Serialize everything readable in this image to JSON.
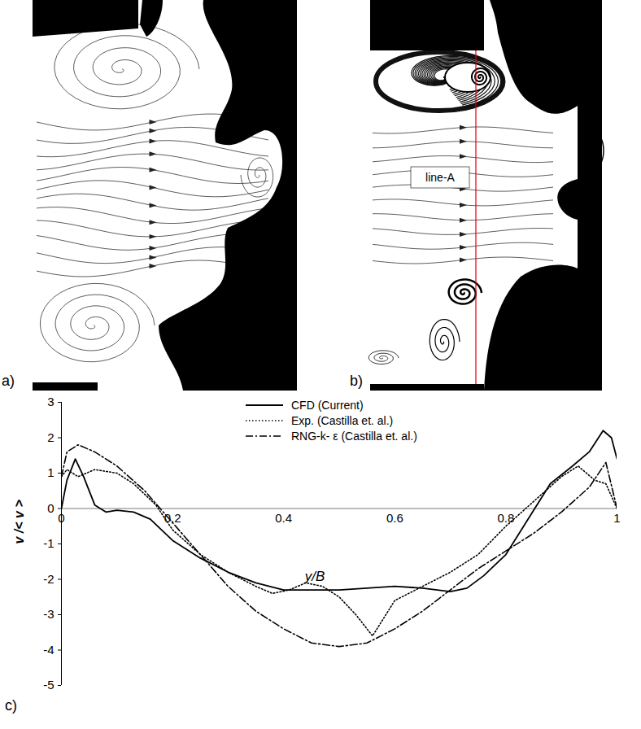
{
  "panels": [
    {
      "label": "a)"
    },
    {
      "label": "b)",
      "annotation": "line-A"
    }
  ],
  "chart_data": {
    "type": "line",
    "label": "c)",
    "x_label": "y/B",
    "y_label": "v /< v >",
    "xlim": [
      0,
      1
    ],
    "xticks": [
      0,
      0.2,
      0.4,
      0.6,
      0.8,
      1
    ],
    "ylim": [
      -5,
      3
    ],
    "yticks": [
      -5,
      -4,
      -3,
      -2,
      -1,
      0,
      1,
      2,
      3
    ],
    "grid": false,
    "legend": "top",
    "series": [
      {
        "name": "CFD (Current)",
        "color": "#000000",
        "line_style": "solid",
        "x": [
          0,
          0.01,
          0.025,
          0.04,
          0.06,
          0.08,
          0.1,
          0.13,
          0.16,
          0.2,
          0.25,
          0.3,
          0.35,
          0.4,
          0.45,
          0.5,
          0.55,
          0.6,
          0.65,
          0.7,
          0.73,
          0.76,
          0.8,
          0.84,
          0.88,
          0.92,
          0.95,
          0.975,
          0.99,
          1
        ],
        "values": [
          0,
          0.8,
          1.4,
          0.9,
          0.1,
          -0.1,
          -0.05,
          -0.1,
          -0.3,
          -0.9,
          -1.4,
          -1.8,
          -2.1,
          -2.3,
          -2.3,
          -2.3,
          -2.25,
          -2.2,
          -2.25,
          -2.35,
          -2.25,
          -1.9,
          -1.3,
          -0.3,
          0.7,
          1.2,
          1.6,
          2.2,
          2.0,
          1.4
        ]
      },
      {
        "name": "Exp. (Castilla et. al.)",
        "color": "#000000",
        "line_style": "dotted",
        "x": [
          0,
          0.01,
          0.03,
          0.06,
          0.1,
          0.13,
          0.17,
          0.2,
          0.25,
          0.3,
          0.35,
          0.38,
          0.41,
          0.44,
          0.47,
          0.5,
          0.53,
          0.56,
          0.58,
          0.6,
          0.65,
          0.7,
          0.75,
          0.8,
          0.85,
          0.9,
          0.93,
          0.96,
          0.98,
          1
        ],
        "values": [
          0.9,
          1.1,
          0.9,
          1.1,
          1.0,
          0.7,
          0.1,
          -0.6,
          -1.3,
          -1.8,
          -2.2,
          -2.4,
          -2.3,
          -2.1,
          -2.2,
          -2.5,
          -3.0,
          -3.6,
          -3.1,
          -2.6,
          -2.2,
          -1.8,
          -1.3,
          -0.5,
          0.2,
          0.9,
          1.2,
          0.8,
          0.7,
          0
        ]
      },
      {
        "name": "RNG-k- ε  (Castilla et. al.)",
        "color": "#000000",
        "line_style": "dashdot",
        "x": [
          0,
          0.01,
          0.03,
          0.06,
          0.1,
          0.15,
          0.2,
          0.25,
          0.3,
          0.35,
          0.4,
          0.45,
          0.5,
          0.55,
          0.6,
          0.65,
          0.7,
          0.75,
          0.8,
          0.85,
          0.9,
          0.95,
          0.98,
          1
        ],
        "values": [
          0.9,
          1.6,
          1.8,
          1.6,
          1.2,
          0.5,
          -0.4,
          -1.3,
          -2.2,
          -2.9,
          -3.4,
          -3.8,
          -3.9,
          -3.8,
          -3.4,
          -2.9,
          -2.3,
          -1.7,
          -1.2,
          -0.7,
          -0.1,
          0.6,
          1.3,
          0
        ]
      }
    ]
  }
}
